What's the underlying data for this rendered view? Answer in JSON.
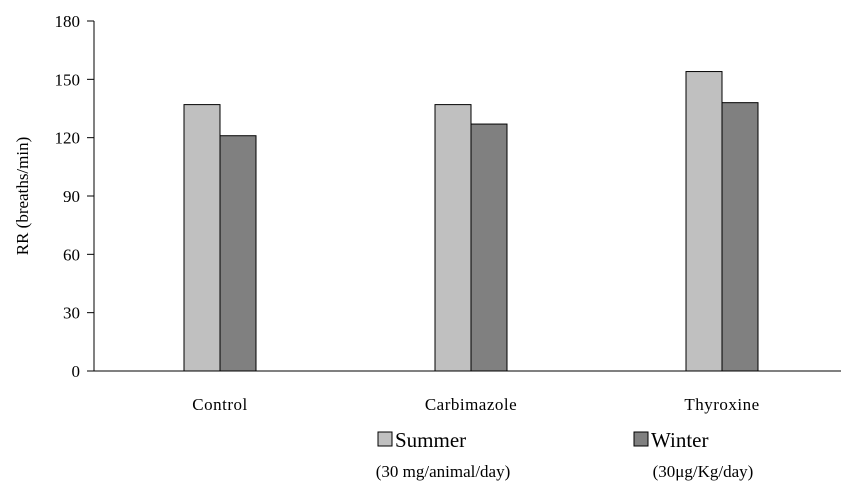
{
  "chart_data": {
    "type": "bar",
    "title": "",
    "xlabel": "",
    "ylabel": "RR (breaths/min)",
    "ylim": [
      0,
      180
    ],
    "yticks": [
      0,
      30,
      60,
      90,
      120,
      150,
      180
    ],
    "categories": [
      "Control",
      "Carbimazole",
      "Thyroxine"
    ],
    "series": [
      {
        "name": "Summer",
        "values": [
          137,
          137,
          154
        ],
        "color": "#c0c0c0"
      },
      {
        "name": "Winter",
        "values": [
          121,
          127,
          138
        ],
        "color": "#808080"
      }
    ],
    "legend": {
      "placement": "bottom",
      "entries": [
        "Summer",
        "Winter"
      ]
    },
    "footnotes": [
      "(30 mg/animal/day)",
      "(30μg/Kg/day)"
    ],
    "grid": false
  }
}
